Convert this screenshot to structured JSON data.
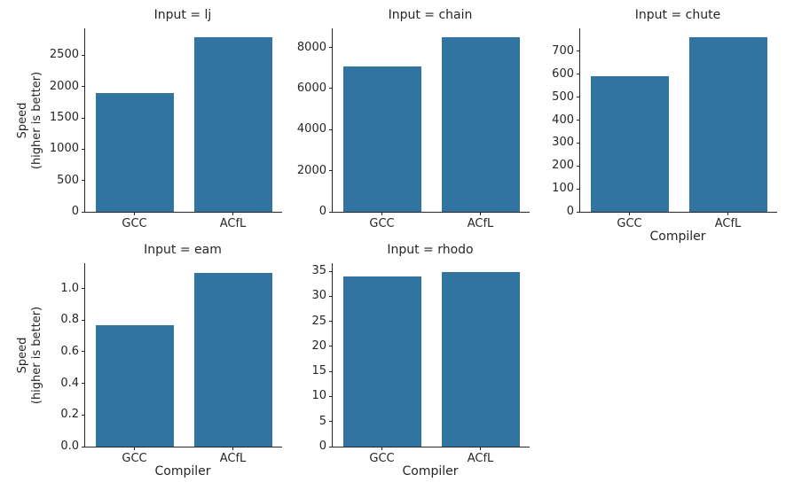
{
  "figure": {
    "background": "#ffffff",
    "bar_color": "#3274a1",
    "axis_color": "#262626",
    "ylabel_line1": "Speed",
    "ylabel_line2": "(higher is better)",
    "xlabel": "Compiler"
  },
  "chart_data": [
    {
      "type": "bar",
      "title": "Input = lj",
      "categories": [
        "GCC",
        "ACfL"
      ],
      "values": [
        1900,
        2790
      ],
      "yticks": [
        0,
        500,
        1000,
        1500,
        2000,
        2500
      ],
      "ytick_labels": [
        "0",
        "500",
        "1000",
        "1500",
        "2000",
        "2500"
      ],
      "ylim": [
        0,
        2930
      ],
      "xlabel": "",
      "ylabel": "Speed\n(higher is better)",
      "legend": "none",
      "grid": false
    },
    {
      "type": "bar",
      "title": "Input = chain",
      "categories": [
        "GCC",
        "ACfL"
      ],
      "values": [
        7060,
        8490
      ],
      "yticks": [
        0,
        2000,
        4000,
        6000,
        8000
      ],
      "ytick_labels": [
        "0",
        "2000",
        "4000",
        "6000",
        "8000"
      ],
      "ylim": [
        0,
        8930
      ],
      "xlabel": "",
      "ylabel": "",
      "legend": "none",
      "grid": false
    },
    {
      "type": "bar",
      "title": "Input = chute",
      "categories": [
        "GCC",
        "ACfL"
      ],
      "values": [
        592,
        761
      ],
      "yticks": [
        0,
        100,
        200,
        300,
        400,
        500,
        600,
        700
      ],
      "ytick_labels": [
        "0",
        "100",
        "200",
        "300",
        "400",
        "500",
        "600",
        "700"
      ],
      "ylim": [
        0,
        800
      ],
      "xlabel": "Compiler",
      "ylabel": "",
      "legend": "none",
      "grid": false
    },
    {
      "type": "bar",
      "title": "Input = eam",
      "categories": [
        "GCC",
        "ACfL"
      ],
      "values": [
        0.77,
        1.1
      ],
      "yticks": [
        0,
        0.2,
        0.4,
        0.6,
        0.8,
        1.0
      ],
      "ytick_labels": [
        "0.0",
        "0.2",
        "0.4",
        "0.6",
        "0.8",
        "1.0"
      ],
      "ylim": [
        0,
        1.16
      ],
      "xlabel": "Compiler",
      "ylabel": "Speed\n(higher is better)",
      "legend": "none",
      "grid": false
    },
    {
      "type": "bar",
      "title": "Input = rhodo",
      "categories": [
        "GCC",
        "ACfL"
      ],
      "values": [
        33.9,
        34.8
      ],
      "yticks": [
        0,
        5,
        10,
        15,
        20,
        25,
        30,
        35
      ],
      "ytick_labels": [
        "0",
        "5",
        "10",
        "15",
        "20",
        "25",
        "30",
        "35"
      ],
      "ylim": [
        0,
        36.6
      ],
      "xlabel": "Compiler",
      "ylabel": "",
      "legend": "none",
      "grid": false
    }
  ]
}
